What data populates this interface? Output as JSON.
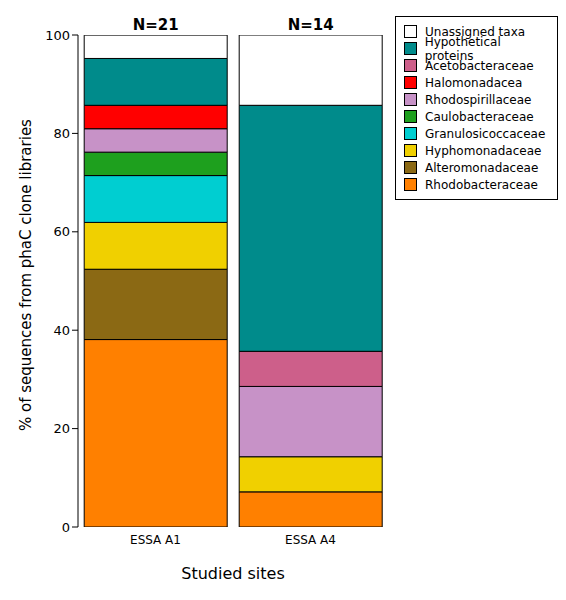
{
  "chart_data": {
    "type": "bar",
    "stacked": true,
    "categories": [
      "ESSA A1",
      "ESSA A4"
    ],
    "annotations": [
      "N=21",
      "N=14"
    ],
    "x_label": "Studied sites",
    "y_label": "% of sequences from phaC clone libraries",
    "ylim": [
      0,
      100
    ],
    "yticks": [
      0,
      20,
      40,
      60,
      80,
      100
    ],
    "legend": "right",
    "series": [
      {
        "name": "Rhodobacteraceae",
        "color": "#ff8000",
        "values": [
          38.1,
          7.14
        ]
      },
      {
        "name": "Alteromonadaceae",
        "color": "#8b6914",
        "values": [
          14.29,
          0
        ]
      },
      {
        "name": "Hyphomonadaceae",
        "color": "#f0d000",
        "values": [
          9.52,
          7.14
        ]
      },
      {
        "name": "Granulosicoccaceae",
        "color": "#00ced1",
        "values": [
          9.52,
          0
        ]
      },
      {
        "name": "Caulobacteraceae",
        "color": "#1ea01e",
        "values": [
          4.76,
          0
        ]
      },
      {
        "name": "Rhodospirillaceae",
        "color": "#c792c7",
        "values": [
          4.76,
          14.29
        ]
      },
      {
        "name": "Halomonadacea",
        "color": "#ff0000",
        "values": [
          4.76,
          0
        ]
      },
      {
        "name": "Acetobacteraceae",
        "color": "#cd5f8a",
        "values": [
          0,
          7.14
        ]
      },
      {
        "name": "Hypothetical proteins",
        "color": "#008b8b",
        "values": [
          9.52,
          50
        ]
      },
      {
        "name": "Unassigned taxa",
        "color": "#ffffff",
        "values": [
          4.75,
          14.29
        ]
      }
    ]
  }
}
